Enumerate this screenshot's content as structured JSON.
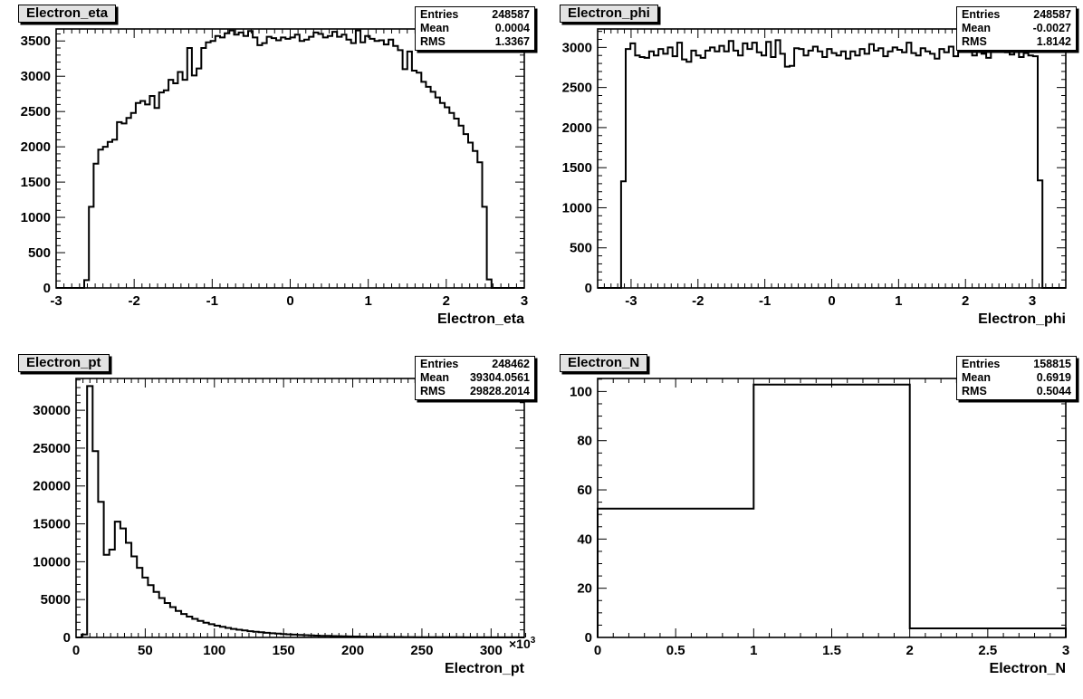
{
  "colors": {
    "line": "#000000",
    "background": "#ffffff",
    "title_fill": "#e2e2e2",
    "stats_fill": "#ffffff"
  },
  "stats_labels": {
    "entries": "Entries",
    "mean": "Mean",
    "rms": "RMS"
  },
  "chart_data": [
    {
      "type": "bar",
      "subtype": "step-histogram",
      "title": "Electron_eta",
      "stats": {
        "entries": "248587",
        "mean": "0.0004",
        "rms": "1.3367"
      },
      "x_axis": {
        "title": "Electron_eta",
        "range": [
          -3,
          3
        ],
        "major_values": [
          -3,
          -2,
          -1,
          0,
          1,
          2,
          3
        ],
        "major_labels": [
          "-3",
          "-2",
          "-1",
          "0",
          "1",
          "2",
          "3"
        ],
        "minor_step": 0.1,
        "multiplier": null
      },
      "y_axis": {
        "range": [
          0,
          3670
        ],
        "major_values": [
          0,
          500,
          1000,
          1500,
          2000,
          2500,
          3000,
          3500
        ],
        "major_labels": [
          "0",
          "500",
          "1000",
          "1500",
          "2000",
          "2500",
          "3000",
          "3500"
        ],
        "minor_step": 100
      },
      "bin_start": -3,
      "bin_width": 0.06,
      "values": [
        0,
        0,
        0,
        0,
        0,
        0,
        110,
        1150,
        1760,
        1960,
        2000,
        2070,
        2100,
        2350,
        2330,
        2410,
        2480,
        2620,
        2650,
        2600,
        2720,
        2550,
        2770,
        2800,
        2950,
        2900,
        3060,
        2950,
        3400,
        3010,
        3110,
        3400,
        3480,
        3500,
        3570,
        3550,
        3610,
        3650,
        3590,
        3620,
        3570,
        3640,
        3550,
        3440,
        3470,
        3560,
        3540,
        3510,
        3550,
        3530,
        3550,
        3590,
        3500,
        3520,
        3560,
        3620,
        3600,
        3550,
        3570,
        3630,
        3560,
        3590,
        3520,
        3470,
        3650,
        3480,
        3570,
        3530,
        3500,
        3510,
        3450,
        3520,
        3430,
        3370,
        3100,
        3350,
        3080,
        3050,
        2920,
        2850,
        2780,
        2700,
        2620,
        2560,
        2480,
        2400,
        2300,
        2180,
        2060,
        1940,
        1780,
        1150,
        120,
        0,
        0,
        0,
        0,
        0,
        0,
        0
      ]
    },
    {
      "type": "bar",
      "subtype": "step-histogram",
      "title": "Electron_phi",
      "stats": {
        "entries": "248587",
        "mean": "-0.0027",
        "rms": "1.8142"
      },
      "x_axis": {
        "title": "Electron_phi",
        "range": [
          -3.5,
          3.5
        ],
        "major_values": [
          -3,
          -2,
          -1,
          0,
          1,
          2,
          3
        ],
        "major_labels": [
          "-3",
          "-2",
          "-1",
          "0",
          "1",
          "2",
          "3"
        ],
        "minor_step": 0.1,
        "multiplier": null
      },
      "y_axis": {
        "range": [
          0,
          3230
        ],
        "major_values": [
          0,
          500,
          1000,
          1500,
          2000,
          2500,
          3000
        ],
        "major_labels": [
          "0",
          "500",
          "1000",
          "1500",
          "2000",
          "2500",
          "3000"
        ],
        "minor_step": 100
      },
      "bin_start": -3.5,
      "bin_width": 0.07,
      "values": [
        0,
        0,
        0,
        0,
        0,
        1330,
        2980,
        3050,
        2900,
        2880,
        2870,
        2950,
        2900,
        2980,
        2920,
        3000,
        2890,
        3060,
        2850,
        2820,
        2960,
        2900,
        2870,
        2960,
        3000,
        2950,
        3020,
        2950,
        3080,
        2960,
        2900,
        3050,
        2980,
        3060,
        2940,
        2900,
        3070,
        2880,
        3090,
        2920,
        2760,
        2770,
        2990,
        2980,
        2900,
        2960,
        3010,
        2950,
        2880,
        2980,
        2930,
        2900,
        2950,
        2860,
        2950,
        2900,
        2980,
        2920,
        3040,
        2960,
        2990,
        2890,
        2950,
        3000,
        2970,
        2940,
        3060,
        2930,
        2900,
        2990,
        2950,
        2920,
        2860,
        2980,
        2940,
        3010,
        2890,
        2960,
        3030,
        2950,
        2900,
        2960,
        2920,
        2870,
        2980,
        2950,
        3000,
        2940,
        2910,
        2970,
        2880,
        2930,
        2900,
        2890,
        1340,
        0,
        0,
        0,
        0,
        0
      ]
    },
    {
      "type": "bar",
      "subtype": "step-histogram",
      "title": "Electron_pt",
      "stats": {
        "entries": "248462",
        "mean": "39304.0561",
        "rms": "29828.2014"
      },
      "x_axis": {
        "title": "Electron_pt",
        "range": [
          0,
          324000
        ],
        "major_values": [
          0,
          50000,
          100000,
          150000,
          200000,
          250000,
          300000
        ],
        "major_labels": [
          "0",
          "50",
          "100",
          "150",
          "200",
          "250",
          "300"
        ],
        "minor_step": 5000,
        "multiplier": {
          "base": "×10",
          "exp": "3"
        }
      },
      "y_axis": {
        "range": [
          0,
          34200
        ],
        "major_values": [
          0,
          5000,
          10000,
          15000,
          20000,
          25000,
          30000
        ],
        "major_labels": [
          "0",
          "5000",
          "10000",
          "15000",
          "20000",
          "25000",
          "30000"
        ],
        "minor_step": 1000
      },
      "bin_start": 0,
      "bin_width": 4000,
      "values": [
        0,
        400,
        33200,
        24600,
        17900,
        10900,
        11600,
        15300,
        14400,
        12500,
        10700,
        9200,
        7900,
        6900,
        6000,
        5200,
        4550,
        4000,
        3500,
        3100,
        2750,
        2450,
        2180,
        1950,
        1740,
        1560,
        1400,
        1260,
        1130,
        1020,
        920,
        830,
        750,
        680,
        610,
        550,
        500,
        450,
        410,
        370,
        335,
        300,
        270,
        245,
        220,
        200,
        180,
        165,
        150,
        135,
        120,
        110,
        100,
        90,
        82,
        74,
        67,
        61,
        55,
        50,
        45,
        41,
        37,
        34,
        31,
        28,
        25,
        23,
        21,
        19,
        17,
        15,
        14,
        13,
        12,
        11,
        10,
        9,
        8,
        7
      ]
    },
    {
      "type": "bar",
      "subtype": "step-histogram",
      "title": "Electron_N",
      "stats": {
        "entries": "158815",
        "mean": "0.6919",
        "rms": "0.5044"
      },
      "x_axis": {
        "title": "Electron_N",
        "range": [
          0,
          3
        ],
        "major_values": [
          0,
          0.5,
          1,
          1.5,
          2,
          2.5,
          3
        ],
        "major_labels": [
          "0",
          "0.5",
          "1",
          "1.5",
          "2",
          "2.5",
          "3"
        ],
        "minor_step": 0.1,
        "multiplier": null
      },
      "y_axis": {
        "range": [
          0,
          105.3
        ],
        "major_values": [
          0,
          20,
          40,
          60,
          80,
          100
        ],
        "major_labels": [
          "0",
          "20",
          "40",
          "60",
          "80",
          "100"
        ],
        "minor_step": 5
      },
      "bin_start": 0,
      "bin_width": 1,
      "values": [
        52.4,
        102.8,
        3.7
      ]
    }
  ]
}
